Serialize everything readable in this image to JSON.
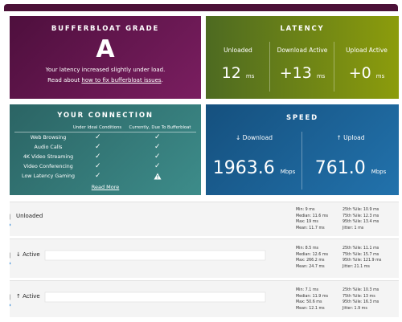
{
  "grade": {
    "title": "BUFFERBLOAT GRADE",
    "grade": "A",
    "message": "Your latency increased slightly under load.",
    "link_prefix": "Read about",
    "link": "how to fix bufferbloat issues",
    "link_suffix": "."
  },
  "latency": {
    "title": "LATENCY",
    "items": [
      {
        "label": "Unloaded",
        "value": "12",
        "unit": "ms"
      },
      {
        "label": "Download Active",
        "value": "+13",
        "unit": "ms"
      },
      {
        "label": "Upload Active",
        "value": "+0",
        "unit": "ms"
      }
    ]
  },
  "connection": {
    "title": "YOUR CONNECTION",
    "columns": [
      "Under Ideal Conditions",
      "Currently, Due To Bufferbloat"
    ],
    "rows": [
      "Web Browsing",
      "Audio Calls",
      "4K Video Streaming",
      "Video Conferencing",
      "Low Latency Gaming"
    ],
    "link": "Read More"
  },
  "speed": {
    "title": "SPEED",
    "items": [
      {
        "label": "↓ Download",
        "value": "1963.6",
        "unit": "Mbps"
      },
      {
        "label": "↑ Upload",
        "value": "761.0",
        "unit": "Mbps"
      }
    ]
  },
  "results": {
    "unit": "ms",
    "rows": [
      {
        "label": "Unloaded",
        "stats": [
          {
            "label": "Min:",
            "value": 9
          },
          {
            "label": "Median:",
            "value": 11.6
          },
          {
            "label": "Max:",
            "value": 19
          },
          {
            "label": "Mean:",
            "value": 11.7
          },
          {
            "label": "25th %ile:",
            "value": 10.9
          },
          {
            "label": "75th %ile:",
            "value": 12.3
          },
          {
            "label": "95th %ile:",
            "value": 13.4
          },
          {
            "label": "Jitter:",
            "value": 1
          }
        ]
      },
      {
        "label": "↓ Active",
        "stats": [
          {
            "label": "Min:",
            "value": 8.5
          },
          {
            "label": "Median:",
            "value": 12.6
          },
          {
            "label": "Max:",
            "value": 266.2
          },
          {
            "label": "Mean:",
            "value": 24.7
          },
          {
            "label": "25th %ile:",
            "value": 11.1
          },
          {
            "label": "75th %ile:",
            "value": 15.7
          },
          {
            "label": "95th %ile:",
            "value": 121.9
          },
          {
            "label": "Jitter:",
            "value": 21.1
          }
        ]
      },
      {
        "label": "↑ Active",
        "stats": [
          {
            "label": "Min:",
            "value": 7.1
          },
          {
            "label": "Median:",
            "value": 11.9
          },
          {
            "label": "Max:",
            "value": 50.6
          },
          {
            "label": "Mean:",
            "value": 12.1
          },
          {
            "label": "25th %ile:",
            "value": 10.3
          },
          {
            "label": "75th %ile:",
            "value": 13
          },
          {
            "label": "95th %ile:",
            "value": 16.3
          },
          {
            "label": "Jitter:",
            "value": 1.9
          }
        ]
      }
    ]
  }
}
